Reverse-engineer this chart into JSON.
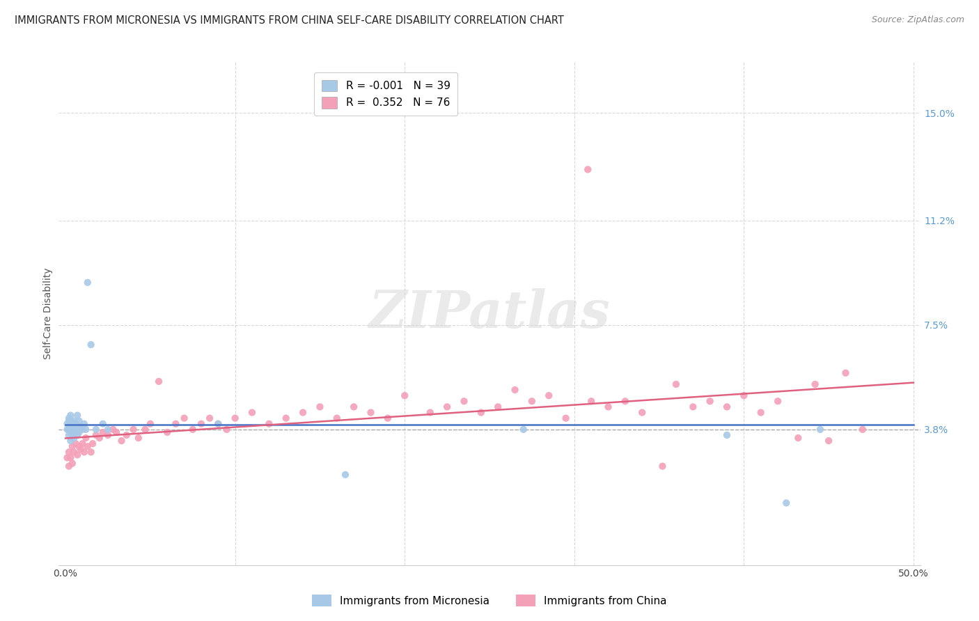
{
  "title": "IMMIGRANTS FROM MICRONESIA VS IMMIGRANTS FROM CHINA SELF-CARE DISABILITY CORRELATION CHART",
  "source": "Source: ZipAtlas.com",
  "ylabel": "Self-Care Disability",
  "watermark": "ZIPatlas",
  "series1_label": "Immigrants from Micronesia",
  "series2_label": "Immigrants from China",
  "legend1_blue_R": "-0.001",
  "legend1_blue_N": "39",
  "legend1_pink_R": "0.352",
  "legend1_pink_N": "76",
  "color_blue": "#a8c8e8",
  "color_pink": "#f4a0b8",
  "color_blue_line": "#4472c4",
  "color_pink_line": "#e06080",
  "color_right_axis": "#5b9bd5",
  "color_grid": "#d9d9d9",
  "background_color": "#ffffff",
  "title_fontsize": 10.5,
  "tick_fontsize": 10,
  "source_fontsize": 9,
  "ylabel_fontsize": 10,
  "mic_x": [
    0.001,
    0.001,
    0.002,
    0.002,
    0.002,
    0.002,
    0.003,
    0.003,
    0.003,
    0.003,
    0.003,
    0.004,
    0.004,
    0.004,
    0.005,
    0.005,
    0.005,
    0.006,
    0.006,
    0.007,
    0.007,
    0.007,
    0.008,
    0.008,
    0.009,
    0.01,
    0.011,
    0.012,
    0.013,
    0.015,
    0.018,
    0.022,
    0.025,
    0.09,
    0.165,
    0.27,
    0.39,
    0.425,
    0.445
  ],
  "mic_y": [
    0.038,
    0.04,
    0.036,
    0.038,
    0.041,
    0.042,
    0.034,
    0.037,
    0.039,
    0.041,
    0.043,
    0.036,
    0.038,
    0.04,
    0.035,
    0.038,
    0.041,
    0.037,
    0.04,
    0.036,
    0.039,
    0.043,
    0.037,
    0.041,
    0.039,
    0.038,
    0.04,
    0.038,
    0.09,
    0.068,
    0.038,
    0.04,
    0.038,
    0.04,
    0.022,
    0.038,
    0.036,
    0.012,
    0.038
  ],
  "china_x": [
    0.001,
    0.002,
    0.002,
    0.003,
    0.004,
    0.004,
    0.005,
    0.006,
    0.007,
    0.008,
    0.009,
    0.01,
    0.011,
    0.012,
    0.013,
    0.015,
    0.016,
    0.018,
    0.02,
    0.022,
    0.025,
    0.028,
    0.03,
    0.033,
    0.036,
    0.04,
    0.043,
    0.047,
    0.05,
    0.055,
    0.06,
    0.065,
    0.07,
    0.075,
    0.08,
    0.085,
    0.09,
    0.095,
    0.1,
    0.11,
    0.12,
    0.13,
    0.14,
    0.15,
    0.16,
    0.17,
    0.18,
    0.19,
    0.2,
    0.215,
    0.225,
    0.235,
    0.245,
    0.255,
    0.265,
    0.275,
    0.285,
    0.295,
    0.31,
    0.32,
    0.33,
    0.34,
    0.352,
    0.36,
    0.37,
    0.38,
    0.39,
    0.4,
    0.41,
    0.42,
    0.432,
    0.442,
    0.45,
    0.46,
    0.47,
    0.308
  ],
  "china_y": [
    0.028,
    0.025,
    0.03,
    0.028,
    0.032,
    0.026,
    0.03,
    0.033,
    0.029,
    0.032,
    0.031,
    0.033,
    0.03,
    0.035,
    0.032,
    0.03,
    0.033,
    0.036,
    0.035,
    0.037,
    0.036,
    0.038,
    0.037,
    0.034,
    0.036,
    0.038,
    0.035,
    0.038,
    0.04,
    0.055,
    0.037,
    0.04,
    0.042,
    0.038,
    0.04,
    0.042,
    0.04,
    0.038,
    0.042,
    0.044,
    0.04,
    0.042,
    0.044,
    0.046,
    0.042,
    0.046,
    0.044,
    0.042,
    0.05,
    0.044,
    0.046,
    0.048,
    0.044,
    0.046,
    0.052,
    0.048,
    0.05,
    0.042,
    0.048,
    0.046,
    0.048,
    0.044,
    0.025,
    0.054,
    0.046,
    0.048,
    0.046,
    0.05,
    0.044,
    0.048,
    0.035,
    0.054,
    0.034,
    0.058,
    0.038,
    0.13
  ],
  "ylim_low": -0.01,
  "ylim_high": 0.168,
  "xlim_low": -0.004,
  "xlim_high": 0.504
}
